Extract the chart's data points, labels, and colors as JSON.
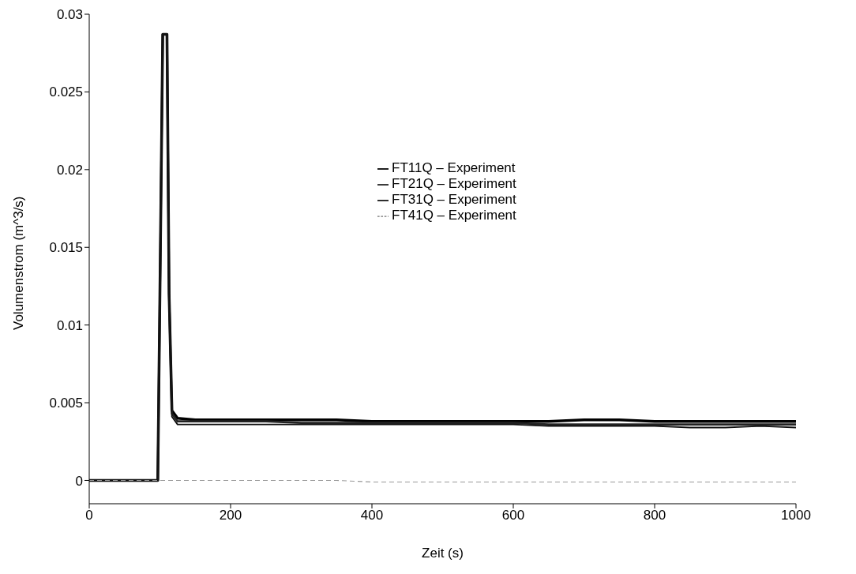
{
  "chart_data": {
    "type": "line",
    "xlabel": "Zeit (s)",
    "ylabel": "Volumenstrom (m^3/s)",
    "x": [
      0,
      50,
      97,
      100,
      104,
      106,
      110,
      113,
      117,
      125,
      150,
      200,
      250,
      300,
      350,
      400,
      450,
      500,
      550,
      600,
      650,
      700,
      750,
      800,
      850,
      900,
      950,
      1000
    ],
    "series": [
      {
        "name": "FT11Q – Experiment",
        "color": "#000000",
        "line_style": "solid",
        "values": [
          0,
          0,
          0,
          0.012,
          0.0287,
          0.0287,
          0.0287,
          0.012,
          0.0045,
          0.004,
          0.0039,
          0.0039,
          0.0039,
          0.0039,
          0.0039,
          0.0038,
          0.0038,
          0.0038,
          0.0038,
          0.0038,
          0.0038,
          0.0039,
          0.0039,
          0.0038,
          0.0038,
          0.0038,
          0.0038,
          0.0038
        ]
      },
      {
        "name": "FT21Q – Experiment",
        "color": "#222222",
        "line_style": "solid",
        "values": [
          0,
          0,
          0,
          0.012,
          0.0287,
          0.0287,
          0.0287,
          0.012,
          0.0043,
          0.0038,
          0.0038,
          0.0038,
          0.0038,
          0.0037,
          0.0037,
          0.0037,
          0.0037,
          0.0037,
          0.0037,
          0.0037,
          0.0036,
          0.0036,
          0.0036,
          0.0036,
          0.0036,
          0.0036,
          0.0036,
          0.0036
        ]
      },
      {
        "name": "FT31Q – Experiment",
        "color": "#111111",
        "line_style": "solid",
        "values": [
          0,
          0,
          0,
          0.012,
          0.0287,
          0.0287,
          0.0287,
          0.012,
          0.0041,
          0.0036,
          0.0036,
          0.0036,
          0.0036,
          0.0036,
          0.0036,
          0.0036,
          0.0036,
          0.0036,
          0.0036,
          0.0036,
          0.0035,
          0.0035,
          0.0035,
          0.0035,
          0.0034,
          0.0034,
          0.0035,
          0.0034
        ]
      },
      {
        "name": "FT41Q – Experiment",
        "color": "#999999",
        "line_style": "dashed",
        "values": [
          0,
          0,
          0,
          0,
          0,
          0,
          0,
          0,
          0,
          0,
          0,
          0,
          0,
          0,
          0,
          -0.0001,
          -0.0001,
          -0.0001,
          -0.0001,
          -0.0001,
          -0.0001,
          -0.0001,
          -0.0001,
          -0.0001,
          -0.0001,
          -0.0001,
          -0.0001,
          -0.0001
        ]
      }
    ],
    "xlim": [
      0,
      1000
    ],
    "xticks": [
      0,
      200,
      400,
      600,
      800,
      1000
    ],
    "ylim": [
      -0.0015,
      0.03
    ],
    "yticks": [
      0,
      0.005,
      0.01,
      0.015,
      0.02,
      0.025,
      0.03
    ],
    "grid": false,
    "legend": "top",
    "marker": "none"
  }
}
